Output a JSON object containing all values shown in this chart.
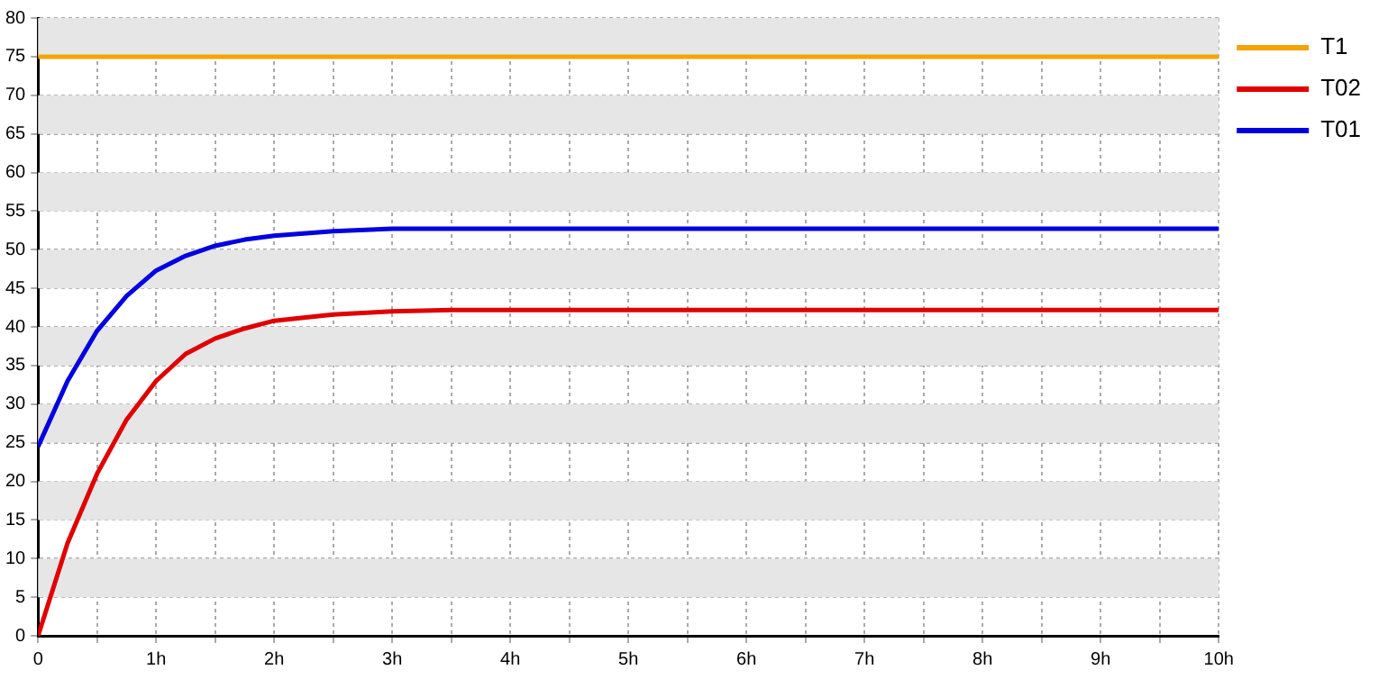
{
  "chart_data": {
    "type": "line",
    "x": [
      0,
      0.25,
      0.5,
      0.75,
      1,
      1.25,
      1.5,
      1.75,
      2,
      2.5,
      3,
      3.5,
      4,
      5,
      6,
      7,
      8,
      9,
      10
    ],
    "series": [
      {
        "name": "T1",
        "color": "#f5a300",
        "values": [
          75,
          75,
          75,
          75,
          75,
          75,
          75,
          75,
          75,
          75,
          75,
          75,
          75,
          75,
          75,
          75,
          75,
          75,
          75
        ]
      },
      {
        "name": "T02",
        "color": "#e00000",
        "values": [
          0,
          12,
          21,
          28,
          33,
          36.5,
          38.5,
          39.8,
          40.8,
          41.6,
          42,
          42.2,
          42.2,
          42.2,
          42.2,
          42.2,
          42.2,
          42.2,
          42.2
        ]
      },
      {
        "name": "T01",
        "color": "#0000e0",
        "values": [
          24.5,
          33,
          39.5,
          44,
          47.3,
          49.2,
          50.5,
          51.3,
          51.8,
          52.4,
          52.7,
          52.7,
          52.7,
          52.7,
          52.7,
          52.7,
          52.7,
          52.7,
          52.7
        ]
      }
    ],
    "xlim": [
      0,
      10
    ],
    "xticks": [
      0,
      {
        "value": 0.5,
        "label": null
      },
      {
        "value": 1,
        "label": "1h"
      },
      {
        "value": 1.5,
        "label": null
      },
      {
        "value": 2,
        "label": "2h"
      },
      {
        "value": 2.5,
        "label": null
      },
      {
        "value": 3,
        "label": "3h"
      },
      {
        "value": 3.5,
        "label": null
      },
      {
        "value": 4,
        "label": "4h"
      },
      {
        "value": 4.5,
        "label": null
      },
      {
        "value": 5,
        "label": "5h"
      },
      {
        "value": 5.5,
        "label": null
      },
      {
        "value": 6,
        "label": "6h"
      },
      {
        "value": 6.5,
        "label": null
      },
      {
        "value": 7,
        "label": "7h"
      },
      {
        "value": 7.5,
        "label": null
      },
      {
        "value": 8,
        "label": "8h"
      },
      {
        "value": 8.5,
        "label": null
      },
      {
        "value": 9,
        "label": "9h"
      },
      {
        "value": 9.5,
        "label": null
      },
      {
        "value": 10,
        "label": "10h"
      }
    ],
    "ylim": [
      0,
      80
    ],
    "yticks": [
      0,
      5,
      10,
      15,
      20,
      25,
      30,
      35,
      40,
      45,
      50,
      55,
      60,
      65,
      70,
      75,
      80
    ],
    "grid": true,
    "legend": "right",
    "marker": "none",
    "line_style": "solid"
  }
}
